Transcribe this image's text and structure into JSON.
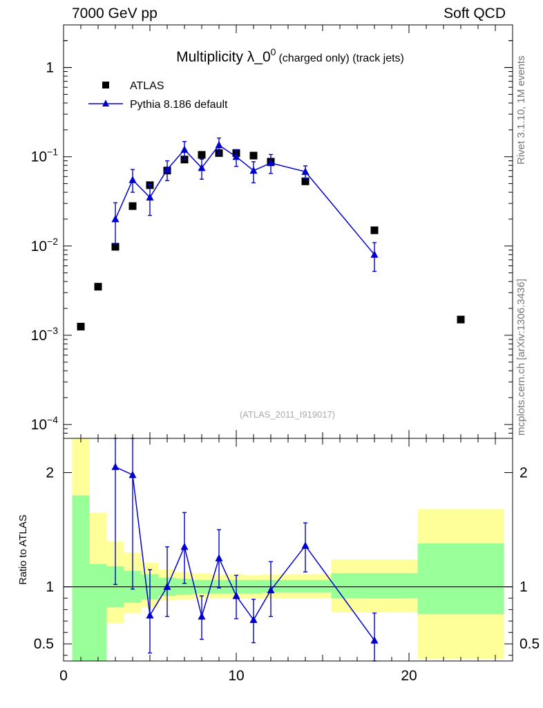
{
  "header": {
    "left": "7000 GeV pp",
    "right": "Soft QCD"
  },
  "side_labels": {
    "rivet": "Rivet 3.1.10,  1M events",
    "mcplots": "mcplots.cern.ch [arXiv:1306.3436]"
  },
  "colors": {
    "mc": "#0000cc",
    "data": "#000000",
    "band_inner": "#99ff99",
    "band_outer": "#ffff99"
  },
  "chart_data": [
    {
      "type": "scatter",
      "title_main": "Multiplicity λ_0",
      "title_sup": "0",
      "title_small": "(charged only) (track jets)",
      "watermark": "(ATLAS_2011_I919017)",
      "xlim": [
        0,
        26
      ],
      "ylim": [
        7e-05,
        3
      ],
      "yscale": "log",
      "ylabel": "",
      "ytick_labels": [
        {
          "base": "1",
          "exp": ""
        },
        {
          "base": "10",
          "exp": "−1"
        },
        {
          "base": "10",
          "exp": "−2"
        },
        {
          "base": "10",
          "exp": "−3"
        },
        {
          "base": "10",
          "exp": "−4"
        }
      ],
      "legend": {
        "position": "top-left",
        "entries": [
          "ATLAS",
          "Pythia 8.186 default"
        ]
      },
      "series": [
        {
          "name": "ATLAS",
          "marker": "square",
          "x": [
            1,
            2,
            3,
            4,
            5,
            6,
            7,
            8,
            9,
            10,
            11,
            12,
            14,
            18,
            23
          ],
          "y": [
            0.00125,
            0.0035,
            0.0098,
            0.028,
            0.048,
            0.07,
            0.093,
            0.105,
            0.11,
            0.11,
            0.103,
            0.088,
            0.053,
            0.015,
            0.0015
          ]
        },
        {
          "name": "Pythia 8.186 default",
          "marker": "triangle",
          "x": [
            3,
            4,
            5,
            6,
            7,
            8,
            9,
            10,
            11,
            12,
            14,
            18
          ],
          "y": [
            0.02,
            0.055,
            0.035,
            0.072,
            0.12,
            0.075,
            0.135,
            0.1,
            0.07,
            0.085,
            0.068,
            0.008
          ],
          "err_lo": [
            0.0095,
            0.015,
            0.013,
            0.018,
            0.028,
            0.019,
            0.028,
            0.022,
            0.019,
            0.02,
            0.011,
            0.0028
          ],
          "err_hi": [
            0.0105,
            0.017,
            0.014,
            0.018,
            0.028,
            0.019,
            0.027,
            0.02,
            0.018,
            0.021,
            0.011,
            0.0029
          ]
        }
      ]
    },
    {
      "type": "scatter",
      "xlabel": "",
      "ylabel": "Ratio to ATLAS",
      "xlim": [
        0,
        26
      ],
      "ylim": [
        0.35,
        2.3
      ],
      "xticks": [
        0,
        10,
        20
      ],
      "yticks": [
        0.5,
        1,
        2
      ],
      "reference": 1,
      "bands": [
        {
          "x0": 0.5,
          "x1": 1.5,
          "inner": [
            0.35,
            1.8
          ],
          "outer": [
            0.35,
            2.3
          ]
        },
        {
          "x0": 1.5,
          "x1": 2.5,
          "inner": [
            0.35,
            1.2
          ],
          "outer": [
            0.35,
            1.65
          ]
        },
        {
          "x0": 2.5,
          "x1": 3.5,
          "inner": [
            0.82,
            1.18
          ],
          "outer": [
            0.68,
            1.4
          ]
        },
        {
          "x0": 3.5,
          "x1": 4.5,
          "inner": [
            0.86,
            1.14
          ],
          "outer": [
            0.77,
            1.3
          ]
        },
        {
          "x0": 4.5,
          "x1": 5.5,
          "inner": [
            0.89,
            1.11
          ],
          "outer": [
            0.82,
            1.21
          ]
        },
        {
          "x0": 5.5,
          "x1": 6.5,
          "inner": [
            0.92,
            1.08
          ],
          "outer": [
            0.88,
            1.15
          ]
        },
        {
          "x0": 6.5,
          "x1": 7.5,
          "inner": [
            0.93,
            1.07
          ],
          "outer": [
            0.89,
            1.13
          ]
        },
        {
          "x0": 7.5,
          "x1": 8.5,
          "inner": [
            0.94,
            1.06
          ],
          "outer": [
            0.9,
            1.12
          ]
        },
        {
          "x0": 8.5,
          "x1": 9.5,
          "inner": [
            0.94,
            1.06
          ],
          "outer": [
            0.9,
            1.11
          ]
        },
        {
          "x0": 9.5,
          "x1": 10.5,
          "inner": [
            0.94,
            1.06
          ],
          "outer": [
            0.9,
            1.11
          ]
        },
        {
          "x0": 10.5,
          "x1": 11.5,
          "inner": [
            0.94,
            1.06
          ],
          "outer": [
            0.9,
            1.1
          ]
        },
        {
          "x0": 11.5,
          "x1": 15.5,
          "inner": [
            0.95,
            1.06
          ],
          "outer": [
            0.9,
            1.11
          ]
        },
        {
          "x0": 15.5,
          "x1": 20.5,
          "inner": [
            0.9,
            1.12
          ],
          "outer": [
            0.78,
            1.24
          ]
        },
        {
          "x0": 20.5,
          "x1": 25.5,
          "inner": [
            0.76,
            1.38
          ],
          "outer": [
            0.37,
            1.68
          ]
        }
      ],
      "series": [
        {
          "name": "Pythia 8.186 default",
          "marker": "triangle",
          "x": [
            3,
            4,
            5,
            6,
            7,
            8,
            9,
            10,
            11,
            12,
            14,
            18
          ],
          "y": [
            2.05,
            1.98,
            0.75,
            1.0,
            1.35,
            0.74,
            1.25,
            0.92,
            0.71,
            0.97,
            1.36,
            0.53
          ],
          "err_lo": [
            1.03,
            1.0,
            0.33,
            0.26,
            0.32,
            0.2,
            0.26,
            0.2,
            0.2,
            0.23,
            0.23,
            0.18
          ],
          "err_hi": [
            1.05,
            1.0,
            0.4,
            0.35,
            0.3,
            0.18,
            0.25,
            0.18,
            0.18,
            0.25,
            0.2,
            0.24
          ]
        }
      ]
    }
  ]
}
